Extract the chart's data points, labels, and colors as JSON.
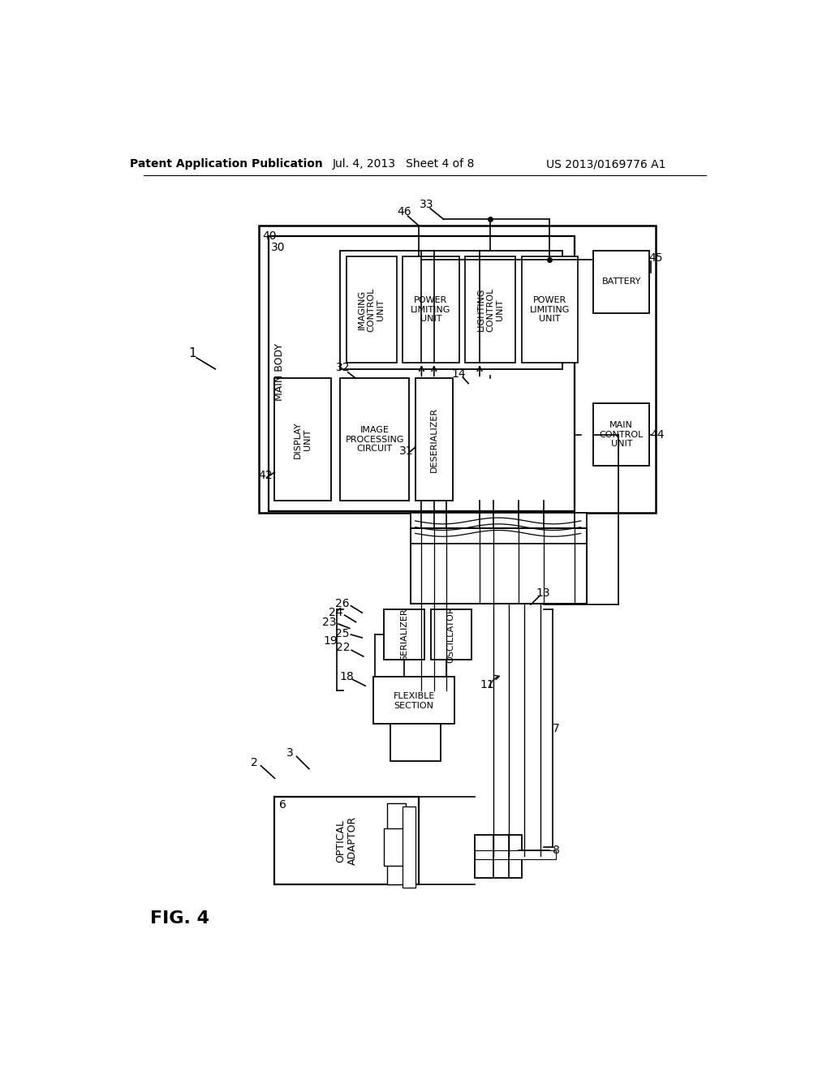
{
  "bg_color": "#ffffff",
  "header_left": "Patent Application Publication",
  "header_center": "Jul. 4, 2013   Sheet 4 of 8",
  "header_right": "US 2013/0169776 A1",
  "fig_label": "FIG. 4"
}
